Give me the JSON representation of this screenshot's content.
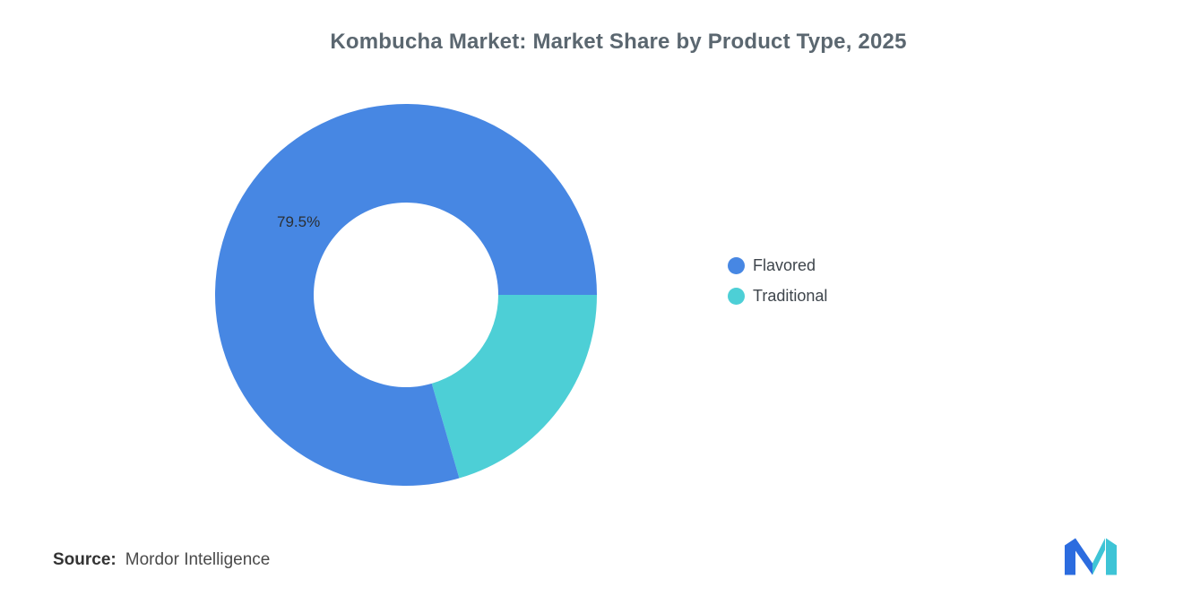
{
  "header": {
    "title": "Kombucha Market: Market Share by Product Type, 2025"
  },
  "chart_data": {
    "type": "pie",
    "donut": true,
    "title": "Kombucha Market: Market Share by Product Type, 2025",
    "units": "%",
    "series": [
      {
        "name": "Flavored",
        "value": 79.5,
        "color": "#4787E3",
        "data_label": "79.5%"
      },
      {
        "name": "Traditional",
        "value": 20.5,
        "color": "#4DCFD6",
        "data_label": ""
      }
    ],
    "start_angle_deg": 0,
    "direction": "clockwise",
    "legend_position": "right",
    "inner_radius_pct": 48
  },
  "footer": {
    "source_label": "Source:",
    "source_value": "Mordor Intelligence"
  },
  "logo": {
    "blue": "#2C6CDF",
    "teal": "#3EC4D6"
  }
}
